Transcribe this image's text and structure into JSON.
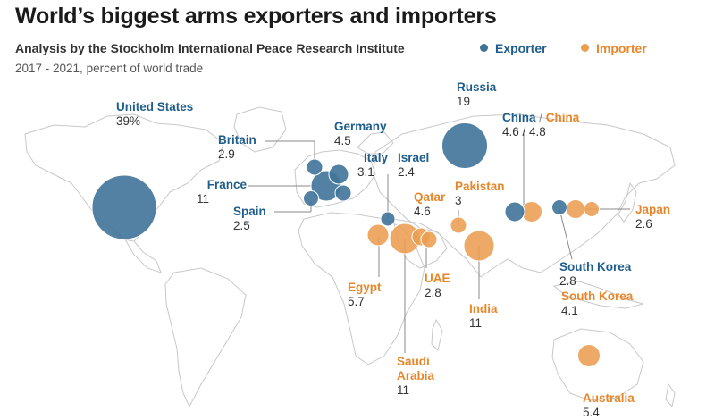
{
  "title": "World’s biggest arms exporters and importers",
  "subtitle": "Analysis by the Stockholm International Peace Research Institute",
  "period": "2017 - 2021, percent of world trade",
  "colors": {
    "exporter": "#3f7399",
    "importer": "#eb9d50",
    "exporter_text": "#1f5d8c",
    "importer_text": "#e8862a"
  },
  "legend": {
    "exporter": "Exporter",
    "importer": "Importer"
  },
  "exporters": [
    {
      "name": "United States",
      "value": "39%"
    },
    {
      "name": "Russia",
      "value": "19"
    },
    {
      "name": "France",
      "value": "11"
    },
    {
      "name": "China",
      "value": "4.6"
    },
    {
      "name": "Germany",
      "value": "4.5"
    },
    {
      "name": "Italy",
      "value": "3.1"
    },
    {
      "name": "Britain",
      "value": "2.9"
    },
    {
      "name": "South Korea",
      "value": "2.8"
    },
    {
      "name": "Spain",
      "value": "2.5"
    },
    {
      "name": "Israel",
      "value": "2.4"
    }
  ],
  "importers": [
    {
      "name": "India",
      "value": "11"
    },
    {
      "name": "Saudi Arabia",
      "value": "11"
    },
    {
      "name": "Egypt",
      "value": "5.7"
    },
    {
      "name": "Australia",
      "value": "5.4"
    },
    {
      "name": "China",
      "value": "4.8"
    },
    {
      "name": "Qatar",
      "value": "4.6"
    },
    {
      "name": "South Korea",
      "value": "4.1"
    },
    {
      "name": "Pakistan",
      "value": "3"
    },
    {
      "name": "UAE",
      "value": "2.8"
    },
    {
      "name": "Japan",
      "value": "2.6"
    }
  ],
  "china_combined": {
    "exp_name": "China",
    "sep": " / ",
    "imp_name": "China",
    "value": "4.6 / 4.8"
  },
  "saudi_name_line1": "Saudi",
  "saudi_name_line2": "Arabia"
}
